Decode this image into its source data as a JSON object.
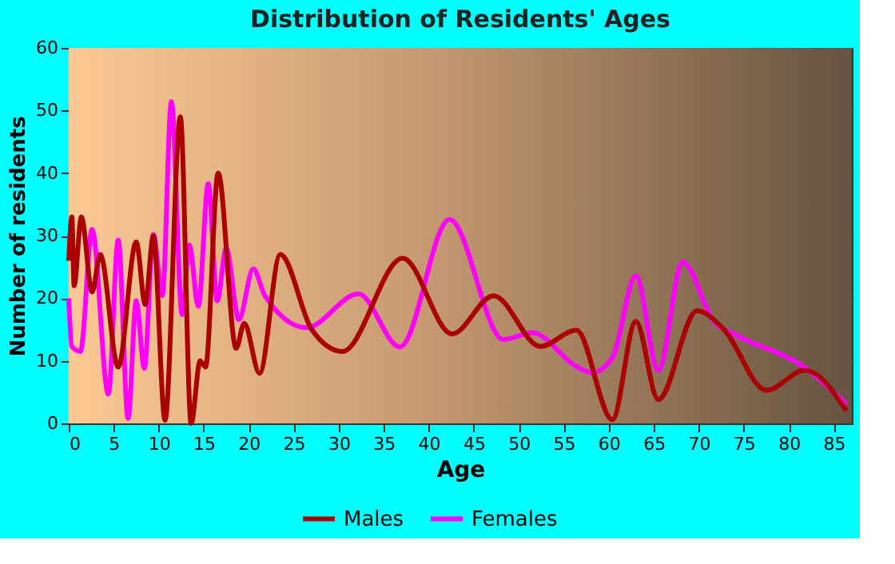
{
  "chart_data": {
    "type": "line",
    "title": "Distribution of Residents' Ages",
    "xlabel": "Age",
    "ylabel": "Number of residents",
    "xlim": [
      0,
      87
    ],
    "xticks": [
      0,
      5,
      10,
      15,
      20,
      25,
      30,
      35,
      40,
      45,
      50,
      55,
      60,
      65,
      70,
      75,
      80,
      85
    ],
    "ylim": [
      0,
      60
    ],
    "yticks": [
      0,
      10,
      20,
      30,
      40,
      50,
      60
    ],
    "grid": true,
    "legend": "bottom",
    "line_style": "solid",
    "series": [
      {
        "name": "Males",
        "color": "#aa0000",
        "x": [
          0,
          0.35,
          0.6,
          1.4,
          2.6,
          3.5,
          5.5,
          7.5,
          8.5,
          9.4,
          10.7,
          12.4,
          13.6,
          14.6,
          15.2,
          16.6,
          18.6,
          19.5,
          21.2,
          23.5,
          27,
          30.4,
          37.1,
          42.6,
          47.2,
          52.4,
          56.4,
          60.4,
          63,
          65.5,
          69.8,
          72.8,
          77.5,
          81.8,
          86.4
        ],
        "values": [
          26,
          33,
          22,
          33,
          21,
          27,
          9,
          29,
          19,
          30,
          0.5,
          49,
          0,
          10,
          9,
          40,
          12,
          16,
          8,
          27,
          15,
          11.5,
          26.4,
          14.3,
          20.4,
          12.3,
          14.9,
          0.6,
          16.3,
          3.8,
          18,
          15,
          5.3,
          8.5,
          2
        ]
      },
      {
        "name": "Females",
        "color": "#ff00ff",
        "x": [
          0,
          0.35,
          1.3,
          2.6,
          4.4,
          5.5,
          6.6,
          7.5,
          8.4,
          9.4,
          10.4,
          11.4,
          12.6,
          13.4,
          14.4,
          15.5,
          16.5,
          17.5,
          18.9,
          20.5,
          21.8,
          26.4,
          32.2,
          36.8,
          42.3,
          48.3,
          51.5,
          56.4,
          58.1,
          60.4,
          63,
          65.5,
          68.2,
          71.7,
          74.3,
          81.8,
          86.4
        ],
        "values": [
          20,
          12.3,
          11.5,
          31,
          4.7,
          29.3,
          0.8,
          19.6,
          8.8,
          30.2,
          20.4,
          51.4,
          17.4,
          28.5,
          18.7,
          38.3,
          19.6,
          28,
          16.6,
          24.7,
          20.4,
          15.3,
          20.7,
          12.2,
          32.6,
          13.4,
          14.5,
          9.1,
          8.1,
          10.5,
          23.6,
          8.5,
          25.8,
          16.2,
          14,
          8.9,
          3
        ]
      }
    ]
  }
}
